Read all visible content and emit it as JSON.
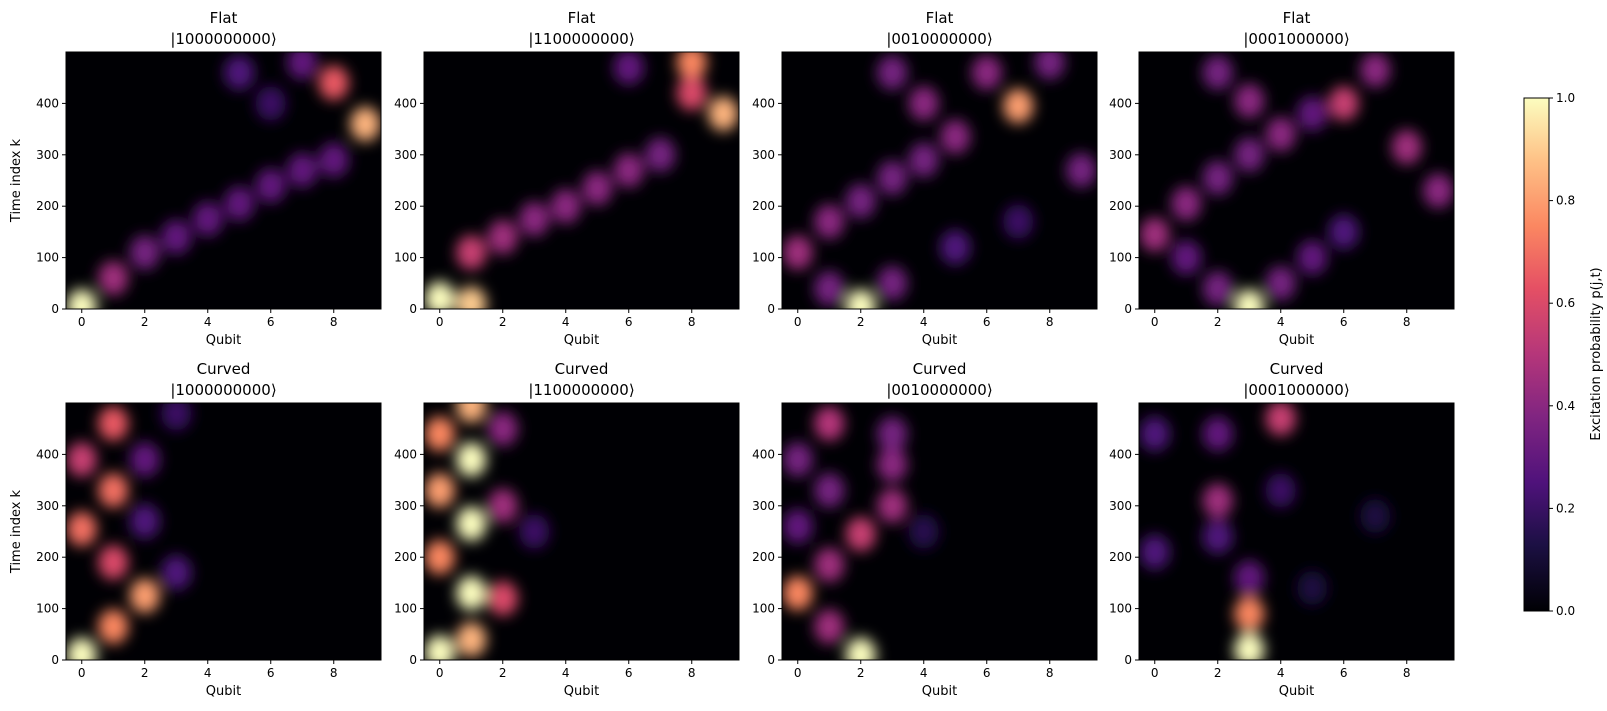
{
  "figure": {
    "colorbar": {
      "label": "Excitation probability p(j,t)",
      "ticks": [
        "0.0",
        "0.2",
        "0.4",
        "0.6",
        "0.8",
        "1.0"
      ],
      "colormap": "magma"
    }
  },
  "chart_data": [
    {
      "type": "heatmap",
      "title_line1": "Flat",
      "title_line2": "|1000000000⟩",
      "xlabel": "Qubit",
      "ylabel": "Time index k",
      "xlim": [
        -0.5,
        9.5
      ],
      "ylim": [
        0,
        500
      ],
      "xticks": [
        "0",
        "2",
        "4",
        "6",
        "8"
      ],
      "yticks": [
        "0",
        "100",
        "200",
        "300",
        "400"
      ],
      "description_blobs": [
        [
          0,
          5,
          1.0
        ],
        [
          1,
          60,
          0.45
        ],
        [
          2,
          110,
          0.35
        ],
        [
          3,
          140,
          0.3
        ],
        [
          4,
          175,
          0.3
        ],
        [
          5,
          205,
          0.3
        ],
        [
          6,
          240,
          0.3
        ],
        [
          7,
          270,
          0.3
        ],
        [
          8,
          290,
          0.3
        ],
        [
          9,
          360,
          0.85
        ],
        [
          8,
          440,
          0.65
        ],
        [
          7,
          480,
          0.3
        ],
        [
          5,
          460,
          0.25
        ],
        [
          6,
          400,
          0.2
        ]
      ]
    },
    {
      "type": "heatmap",
      "title_line1": "Flat",
      "title_line2": "|1100000000⟩",
      "xlabel": "Qubit",
      "ylabel": "",
      "xlim": [
        -0.5,
        9.5
      ],
      "ylim": [
        0,
        500
      ],
      "xticks": [
        "0",
        "2",
        "4",
        "6",
        "8"
      ],
      "yticks": [
        "0",
        "100",
        "200",
        "300",
        "400"
      ],
      "description_blobs": [
        [
          0,
          20,
          1.0
        ],
        [
          1,
          10,
          0.9
        ],
        [
          1,
          110,
          0.55
        ],
        [
          2,
          140,
          0.45
        ],
        [
          3,
          175,
          0.4
        ],
        [
          4,
          200,
          0.4
        ],
        [
          5,
          235,
          0.4
        ],
        [
          6,
          270,
          0.4
        ],
        [
          7,
          300,
          0.35
        ],
        [
          9,
          380,
          0.85
        ],
        [
          8,
          480,
          0.75
        ],
        [
          8,
          420,
          0.6
        ],
        [
          6,
          470,
          0.3
        ]
      ]
    },
    {
      "type": "heatmap",
      "title_line1": "Flat",
      "title_line2": "|0010000000⟩",
      "xlabel": "Qubit",
      "ylabel": "",
      "xlim": [
        -0.5,
        9.5
      ],
      "ylim": [
        0,
        500
      ],
      "xticks": [
        "0",
        "2",
        "4",
        "6",
        "8"
      ],
      "yticks": [
        "0",
        "100",
        "200",
        "300",
        "400"
      ],
      "description_blobs": [
        [
          2,
          5,
          1.0
        ],
        [
          1,
          40,
          0.35
        ],
        [
          0,
          110,
          0.45
        ],
        [
          1,
          170,
          0.4
        ],
        [
          2,
          210,
          0.35
        ],
        [
          3,
          255,
          0.35
        ],
        [
          4,
          290,
          0.35
        ],
        [
          5,
          335,
          0.4
        ],
        [
          7,
          395,
          0.8
        ],
        [
          6,
          460,
          0.4
        ],
        [
          8,
          480,
          0.35
        ],
        [
          3,
          50,
          0.35
        ],
        [
          5,
          120,
          0.25
        ],
        [
          7,
          170,
          0.2
        ],
        [
          9,
          270,
          0.35
        ],
        [
          4,
          400,
          0.4
        ],
        [
          3,
          460,
          0.35
        ]
      ]
    },
    {
      "type": "heatmap",
      "title_line1": "Flat",
      "title_line2": "|0001000000⟩",
      "xlabel": "Qubit",
      "ylabel": "",
      "xlim": [
        -0.5,
        9.5
      ],
      "ylim": [
        0,
        500
      ],
      "xticks": [
        "0",
        "2",
        "4",
        "6",
        "8"
      ],
      "yticks": [
        "0",
        "100",
        "200",
        "300",
        "400"
      ],
      "description_blobs": [
        [
          3,
          5,
          1.0
        ],
        [
          2,
          40,
          0.35
        ],
        [
          1,
          100,
          0.3
        ],
        [
          0,
          145,
          0.45
        ],
        [
          1,
          205,
          0.4
        ],
        [
          2,
          255,
          0.35
        ],
        [
          3,
          300,
          0.35
        ],
        [
          4,
          340,
          0.4
        ],
        [
          5,
          380,
          0.3
        ],
        [
          6,
          400,
          0.55
        ],
        [
          7,
          465,
          0.4
        ],
        [
          4,
          50,
          0.35
        ],
        [
          5,
          100,
          0.3
        ],
        [
          6,
          150,
          0.25
        ],
        [
          8,
          315,
          0.45
        ],
        [
          9,
          230,
          0.4
        ],
        [
          3,
          405,
          0.4
        ],
        [
          2,
          460,
          0.35
        ]
      ]
    },
    {
      "type": "heatmap",
      "title_line1": "Curved",
      "title_line2": "|1000000000⟩",
      "xlabel": "Qubit",
      "ylabel": "Time index k",
      "xlim": [
        -0.5,
        9.5
      ],
      "ylim": [
        0,
        500
      ],
      "xticks": [
        "0",
        "2",
        "4",
        "6",
        "8"
      ],
      "yticks": [
        "0",
        "100",
        "200",
        "300",
        "400"
      ],
      "description_blobs": [
        [
          0,
          10,
          1.0
        ],
        [
          1,
          65,
          0.75
        ],
        [
          2,
          125,
          0.8
        ],
        [
          1,
          190,
          0.6
        ],
        [
          0,
          255,
          0.7
        ],
        [
          1,
          330,
          0.7
        ],
        [
          0,
          390,
          0.55
        ],
        [
          1,
          460,
          0.65
        ],
        [
          2,
          390,
          0.3
        ],
        [
          3,
          170,
          0.25
        ],
        [
          3,
          480,
          0.2
        ],
        [
          2,
          270,
          0.25
        ]
      ]
    },
    {
      "type": "heatmap",
      "title_line1": "Curved",
      "title_line2": "|1100000000⟩",
      "xlabel": "Qubit",
      "ylabel": "",
      "xlim": [
        -0.5,
        9.5
      ],
      "ylim": [
        0,
        500
      ],
      "xticks": [
        "0",
        "2",
        "4",
        "6",
        "8"
      ],
      "yticks": [
        "0",
        "100",
        "200",
        "300",
        "400"
      ],
      "description_blobs": [
        [
          0,
          15,
          1.0
        ],
        [
          1,
          40,
          0.85
        ],
        [
          1,
          130,
          1.0
        ],
        [
          0,
          200,
          0.75
        ],
        [
          1,
          265,
          1.0
        ],
        [
          0,
          330,
          0.8
        ],
        [
          1,
          390,
          1.0
        ],
        [
          0,
          440,
          0.75
        ],
        [
          1,
          495,
          0.85
        ],
        [
          2,
          120,
          0.6
        ],
        [
          2,
          300,
          0.45
        ],
        [
          2,
          450,
          0.4
        ],
        [
          3,
          250,
          0.2
        ]
      ]
    },
    {
      "type": "heatmap",
      "title_line1": "Curved",
      "title_line2": "|0010000000⟩",
      "xlabel": "Qubit",
      "ylabel": "",
      "xlim": [
        -0.5,
        9.5
      ],
      "ylim": [
        0,
        500
      ],
      "xticks": [
        "0",
        "2",
        "4",
        "6",
        "8"
      ],
      "yticks": [
        "0",
        "100",
        "200",
        "300",
        "400"
      ],
      "description_blobs": [
        [
          2,
          10,
          1.0
        ],
        [
          1,
          65,
          0.45
        ],
        [
          0,
          130,
          0.75
        ],
        [
          1,
          185,
          0.45
        ],
        [
          2,
          245,
          0.55
        ],
        [
          3,
          300,
          0.45
        ],
        [
          3,
          380,
          0.4
        ],
        [
          3,
          440,
          0.35
        ],
        [
          1,
          460,
          0.5
        ],
        [
          0,
          390,
          0.35
        ],
        [
          1,
          330,
          0.35
        ],
        [
          0,
          260,
          0.3
        ],
        [
          4,
          250,
          0.15
        ]
      ]
    },
    {
      "type": "heatmap",
      "title_line1": "Curved",
      "title_line2": "|0001000000⟩",
      "xlabel": "Qubit",
      "ylabel": "",
      "xlim": [
        -0.5,
        9.5
      ],
      "ylim": [
        0,
        500
      ],
      "xticks": [
        "0",
        "2",
        "4",
        "6",
        "8"
      ],
      "yticks": [
        "0",
        "100",
        "200",
        "300",
        "400"
      ],
      "description_blobs": [
        [
          3,
          20,
          1.0
        ],
        [
          3,
          90,
          0.75
        ],
        [
          3,
          160,
          0.3
        ],
        [
          2,
          310,
          0.45
        ],
        [
          2,
          240,
          0.25
        ],
        [
          4,
          470,
          0.55
        ],
        [
          2,
          440,
          0.3
        ],
        [
          0,
          440,
          0.25
        ],
        [
          0,
          210,
          0.25
        ],
        [
          4,
          330,
          0.2
        ],
        [
          5,
          140,
          0.12
        ],
        [
          7,
          280,
          0.12
        ]
      ]
    }
  ]
}
